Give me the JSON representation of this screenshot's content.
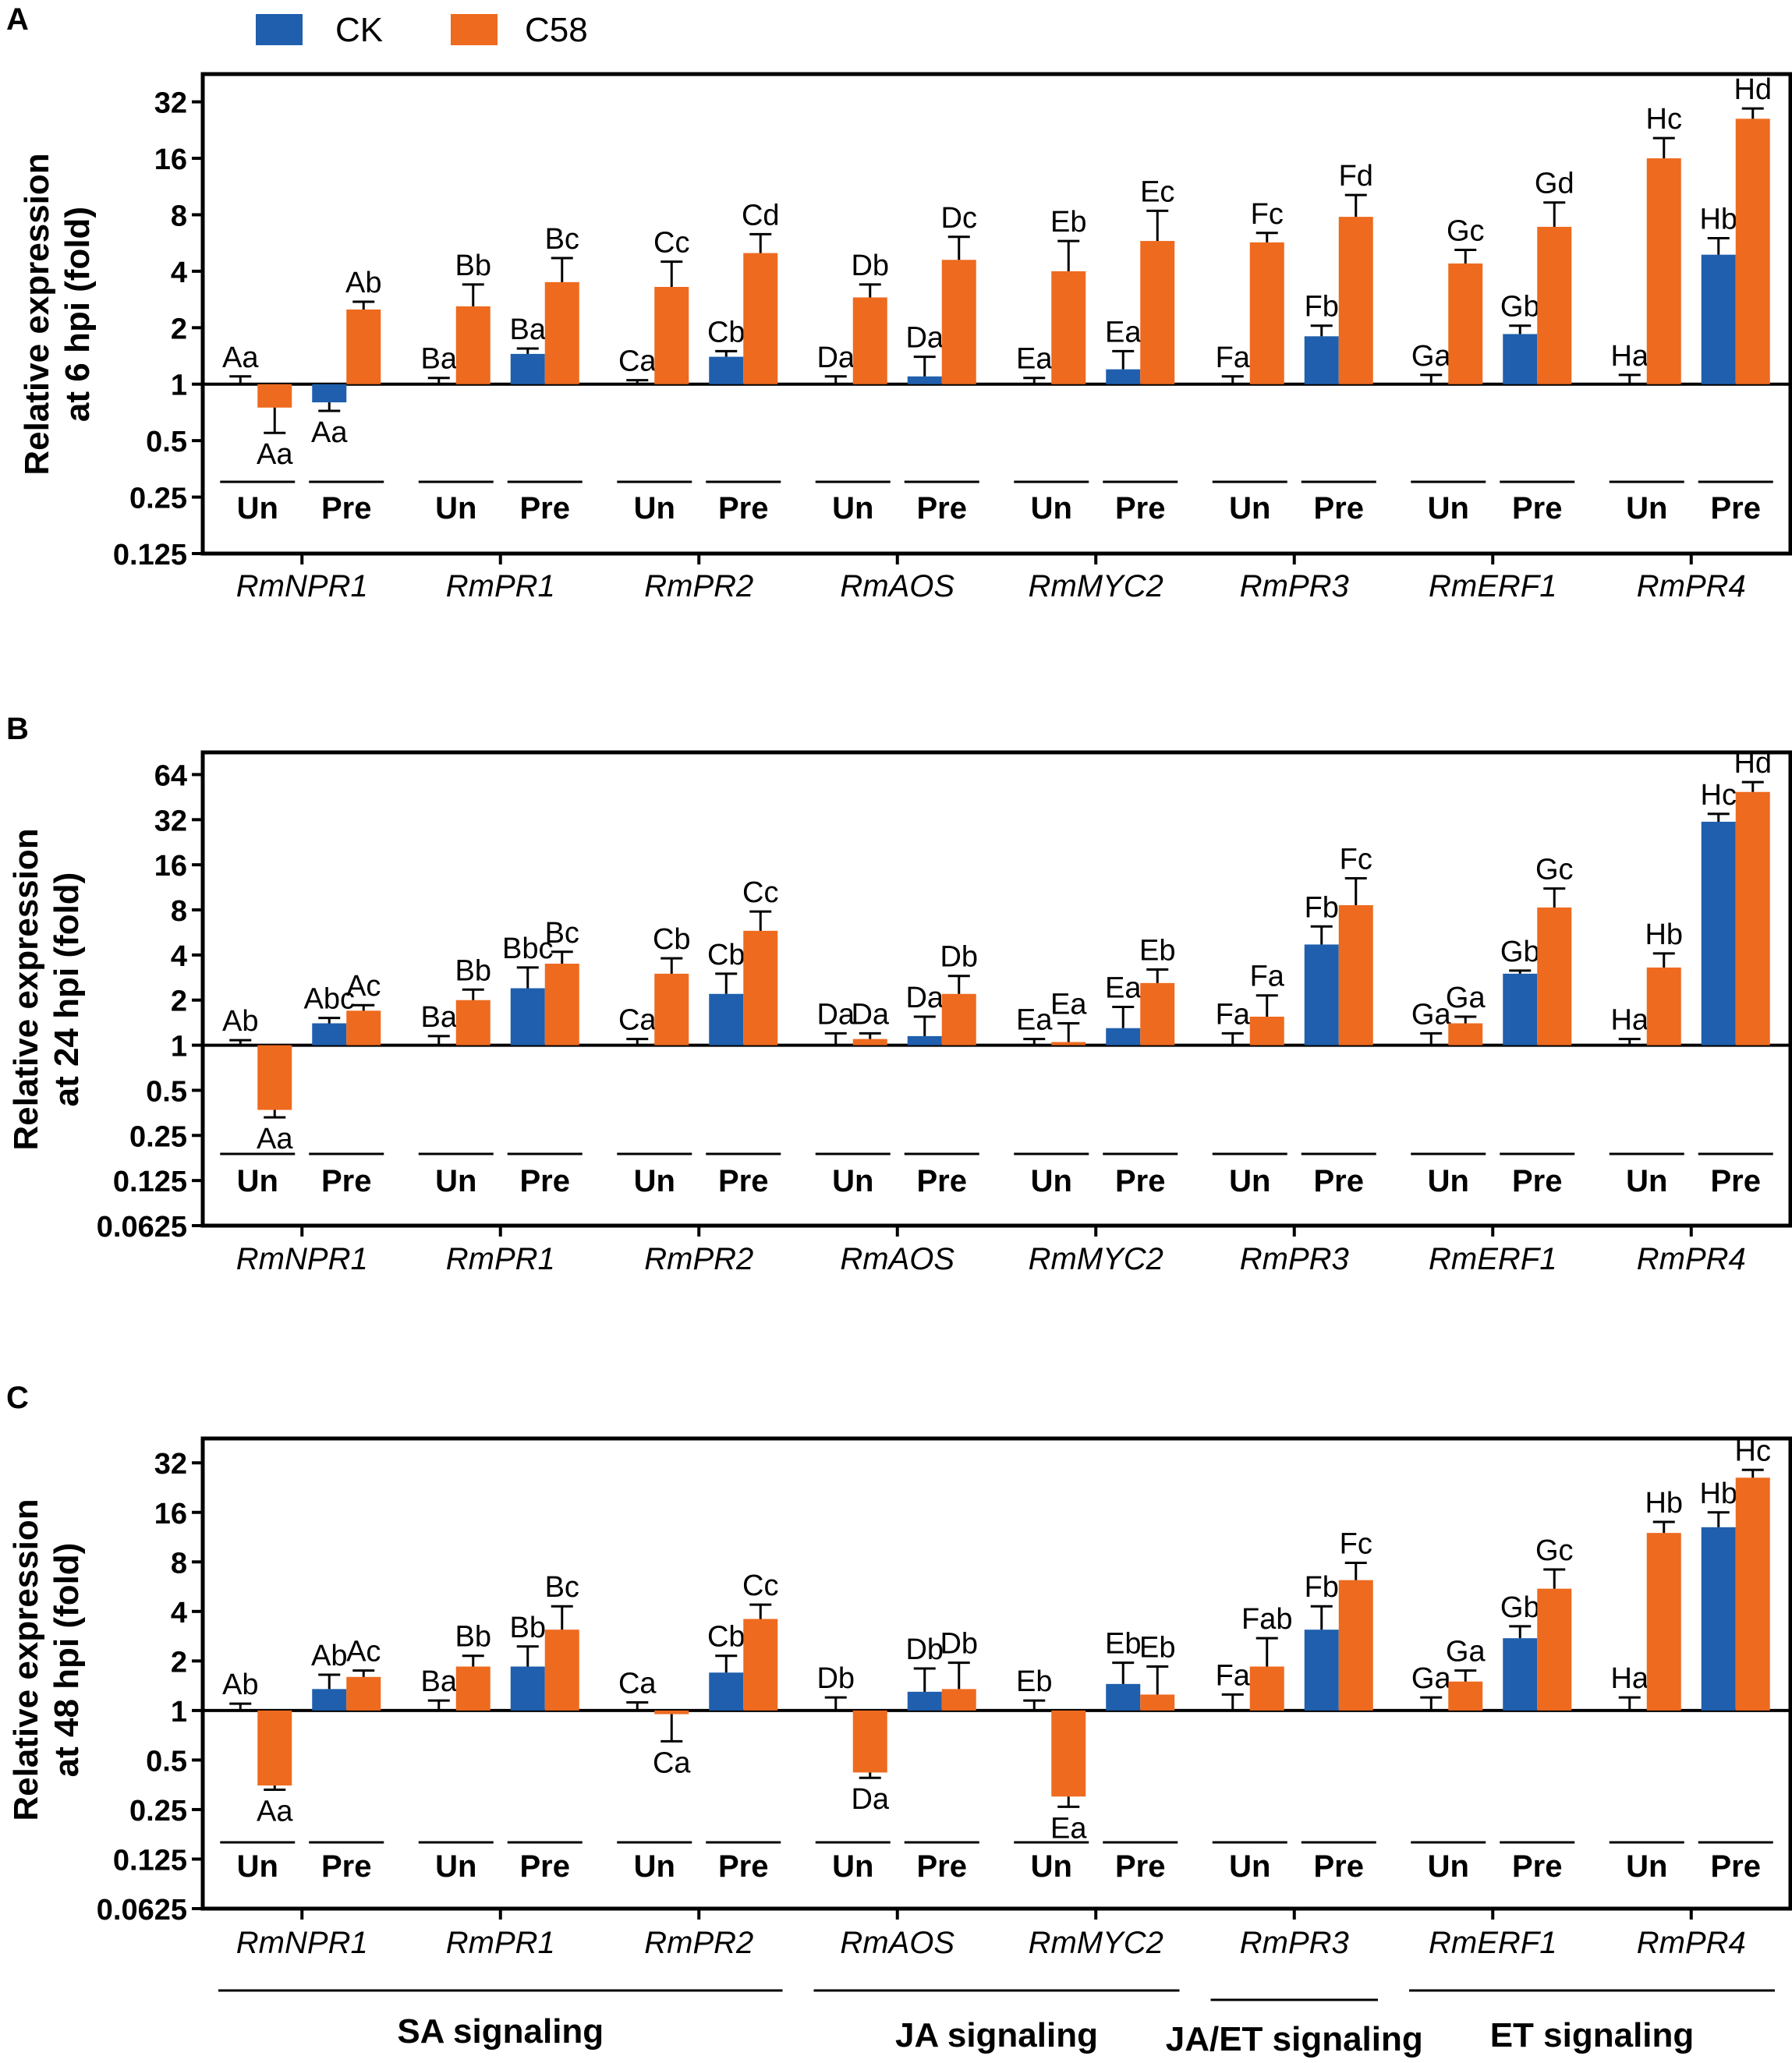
{
  "legend": [
    {
      "name": "CK",
      "color": "#1f5fad"
    },
    {
      "name": "C58",
      "color": "#ee6a1f"
    }
  ],
  "colors": {
    "ck": "#1f5fad",
    "c58": "#ee6a1f",
    "axis": "#000000"
  },
  "treatment_labels": {
    "un": "Un",
    "pre": "Pre"
  },
  "signaling_groups": [
    {
      "label": "SA signaling",
      "genes": [
        "RmNPR1",
        "RmPR1",
        "RmPR2"
      ]
    },
    {
      "label": "JA signaling",
      "genes": [
        "RmAOS",
        "RmMYC2"
      ]
    },
    {
      "label": "JA/ET signaling",
      "genes": [
        "RmPR3"
      ]
    },
    {
      "label": "ET signaling",
      "genes": [
        "RmERF1",
        "RmPR4"
      ]
    }
  ],
  "chart_data": [
    {
      "panel": "A",
      "type": "bar",
      "yscale": "log2",
      "ylabel_lines": [
        "Relative expression",
        "at 6 hpi (fold)"
      ],
      "ylim": [
        0.125,
        45
      ],
      "yticks": [
        "0.125",
        "0.25",
        "0.5",
        "1",
        "2",
        "4",
        "8",
        "16",
        "32"
      ],
      "categories": [
        "RmNPR1",
        "RmPR1",
        "RmPR2",
        "RmAOS",
        "RmMYC2",
        "RmPR3",
        "RmERF1",
        "RmPR4"
      ],
      "bar_order": [
        "CK-Un",
        "C58-Un",
        "CK-Pre",
        "C58-Pre"
      ],
      "values": [
        [
          1.0,
          0.75,
          0.8,
          2.5
        ],
        [
          1.0,
          2.6,
          1.45,
          3.5
        ],
        [
          1.0,
          3.3,
          1.4,
          5.0
        ],
        [
          1.0,
          2.9,
          1.1,
          4.6
        ],
        [
          1.0,
          4.0,
          1.2,
          5.8
        ],
        [
          1.0,
          5.7,
          1.8,
          7.8
        ],
        [
          1.0,
          4.4,
          1.85,
          6.9
        ],
        [
          1.0,
          16.0,
          4.9,
          26.0
        ]
      ],
      "errors": [
        [
          0.1,
          0.2,
          0.08,
          0.25
        ],
        [
          0.08,
          0.8,
          0.1,
          1.2
        ],
        [
          0.05,
          1.2,
          0.1,
          1.3
        ],
        [
          0.1,
          0.5,
          0.3,
          1.5
        ],
        [
          0.08,
          1.8,
          0.3,
          2.6
        ],
        [
          0.1,
          0.7,
          0.25,
          2.4
        ],
        [
          0.12,
          0.8,
          0.2,
          2.4
        ],
        [
          0.12,
          4.5,
          1.1,
          3.5
        ]
      ],
      "labels": [
        [
          "Aa",
          "Aa",
          "Aa",
          "Ab"
        ],
        [
          "Ba",
          "Bb",
          "Ba",
          "Bc"
        ],
        [
          "Ca",
          "Cc",
          "Cb",
          "Cd"
        ],
        [
          "Da",
          "Db",
          "Da",
          "Dc"
        ],
        [
          "Ea",
          "Eb",
          "Ea",
          "Ec"
        ],
        [
          "Fa",
          "Fc",
          "Fb",
          "Fd"
        ],
        [
          "Ga",
          "Gc",
          "Gb",
          "Gd"
        ],
        [
          "Ha",
          "Hc",
          "Hb",
          "Hd"
        ]
      ]
    },
    {
      "panel": "B",
      "type": "bar",
      "yscale": "log2",
      "ylabel_lines": [
        "Relative expression",
        "at 24 hpi (fold)"
      ],
      "ylim": [
        0.0625,
        90
      ],
      "yticks": [
        "0.0625",
        "0.125",
        "0.25",
        "0.5",
        "1",
        "2",
        "4",
        "8",
        "16",
        "32",
        "64"
      ],
      "categories": [
        "RmNPR1",
        "RmPR1",
        "RmPR2",
        "RmAOS",
        "RmMYC2",
        "RmPR3",
        "RmERF1",
        "RmPR4"
      ],
      "bar_order": [
        "CK-Un",
        "C58-Un",
        "CK-Pre",
        "C58-Pre"
      ],
      "values": [
        [
          1.0,
          0.37,
          1.4,
          1.7
        ],
        [
          1.0,
          2.0,
          2.4,
          3.5
        ],
        [
          1.0,
          3.0,
          2.2,
          5.8
        ],
        [
          1.0,
          1.1,
          1.15,
          2.2
        ],
        [
          1.0,
          1.05,
          1.3,
          2.6
        ],
        [
          1.0,
          1.55,
          4.7,
          8.6
        ],
        [
          1.0,
          1.4,
          3.0,
          8.3
        ],
        [
          1.0,
          3.3,
          31.0,
          49.0
        ]
      ],
      "errors": [
        [
          0.08,
          0.04,
          0.12,
          0.15
        ],
        [
          0.15,
          0.35,
          0.9,
          0.7
        ],
        [
          0.1,
          0.8,
          0.8,
          2.0
        ],
        [
          0.2,
          0.1,
          0.4,
          0.7
        ],
        [
          0.1,
          0.35,
          0.5,
          0.6
        ],
        [
          0.2,
          0.6,
          1.5,
          4.4
        ],
        [
          0.2,
          0.15,
          0.15,
          2.8
        ],
        [
          0.1,
          0.8,
          4.0,
          8.0
        ]
      ],
      "labels": [
        [
          "Ab",
          "Aa",
          "Abc",
          "Ac"
        ],
        [
          "Ba",
          "Bb",
          "Bbc",
          "Bc"
        ],
        [
          "Ca",
          "Cb",
          "Cb",
          "Cc"
        ],
        [
          "Da",
          "Da",
          "Da",
          "Db"
        ],
        [
          "Ea",
          "Ea",
          "Ea",
          "Eb"
        ],
        [
          "Fa",
          "Fa",
          "Fb",
          "Fc"
        ],
        [
          "Ga",
          "Ga",
          "Gb",
          "Gc"
        ],
        [
          "Ha",
          "Hb",
          "Hc",
          "Hd"
        ]
      ]
    },
    {
      "panel": "C",
      "type": "bar",
      "yscale": "log2",
      "ylabel_lines": [
        "Relative expression",
        "at 48 hpi (fold)"
      ],
      "ylim": [
        0.0625,
        45
      ],
      "yticks": [
        "0.0625",
        "0.125",
        "0.25",
        "0.5",
        "1",
        "2",
        "4",
        "8",
        "16",
        "32"
      ],
      "categories": [
        "RmNPR1",
        "RmPR1",
        "RmPR2",
        "RmAOS",
        "RmMYC2",
        "RmPR3",
        "RmERF1",
        "RmPR4"
      ],
      "bar_order": [
        "CK-Un",
        "C58-Un",
        "CK-Pre",
        "C58-Pre"
      ],
      "values": [
        [
          1.0,
          0.35,
          1.35,
          1.6
        ],
        [
          1.0,
          1.85,
          1.85,
          3.1
        ],
        [
          1.0,
          0.95,
          1.7,
          3.6
        ],
        [
          1.0,
          0.42,
          1.3,
          1.35
        ],
        [
          1.0,
          0.3,
          1.45,
          1.25
        ],
        [
          1.0,
          1.85,
          3.1,
          6.2
        ],
        [
          1.0,
          1.5,
          2.75,
          5.5
        ],
        [
          1.0,
          12.0,
          13.0,
          26.0
        ]
      ],
      "errors": [
        [
          0.1,
          0.02,
          0.3,
          0.15
        ],
        [
          0.15,
          0.3,
          0.6,
          1.2
        ],
        [
          0.12,
          0.3,
          0.45,
          0.8
        ],
        [
          0.2,
          0.03,
          0.5,
          0.6
        ],
        [
          0.15,
          0.04,
          0.5,
          0.6
        ],
        [
          0.25,
          0.9,
          1.2,
          1.7
        ],
        [
          0.2,
          0.25,
          0.5,
          1.7
        ],
        [
          0.2,
          2.0,
          3.0,
          3.0
        ]
      ],
      "labels": [
        [
          "Ab",
          "Aa",
          "Ab",
          "Ac"
        ],
        [
          "Ba",
          "Bb",
          "Bb",
          "Bc"
        ],
        [
          "Ca",
          "Ca",
          "Cb",
          "Cc"
        ],
        [
          "Db",
          "Da",
          "Db",
          "Db"
        ],
        [
          "Eb",
          "Ea",
          "Eb",
          "Eb"
        ],
        [
          "Fa",
          "Fab",
          "Fb",
          "Fc"
        ],
        [
          "Ga",
          "Ga",
          "Gb",
          "Gc"
        ],
        [
          "Ha",
          "Hb",
          "Hb",
          "Hc"
        ]
      ]
    }
  ]
}
